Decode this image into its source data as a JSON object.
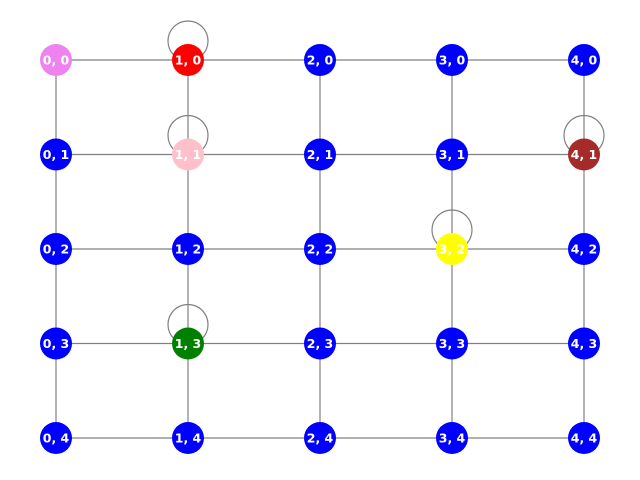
{
  "colors": {
    "edge": "#808080",
    "default_node": "#0000ff",
    "label": "#ffffff"
  },
  "graph": {
    "rows": 5,
    "cols": 5,
    "nodes": [
      {
        "id": "0,0",
        "label": "0, 0",
        "col": 0,
        "row": 0,
        "color": "#ee82ee"
      },
      {
        "id": "1,0",
        "label": "1, 0",
        "col": 1,
        "row": 0,
        "color": "#ff0000"
      },
      {
        "id": "2,0",
        "label": "2, 0",
        "col": 2,
        "row": 0,
        "color": "#0000ff"
      },
      {
        "id": "3,0",
        "label": "3, 0",
        "col": 3,
        "row": 0,
        "color": "#0000ff"
      },
      {
        "id": "4,0",
        "label": "4, 0",
        "col": 4,
        "row": 0,
        "color": "#0000ff"
      },
      {
        "id": "0,1",
        "label": "0, 1",
        "col": 0,
        "row": 1,
        "color": "#0000ff"
      },
      {
        "id": "1,1",
        "label": "1, 1",
        "col": 1,
        "row": 1,
        "color": "#ffc0cb"
      },
      {
        "id": "2,1",
        "label": "2, 1",
        "col": 2,
        "row": 1,
        "color": "#0000ff"
      },
      {
        "id": "3,1",
        "label": "3, 1",
        "col": 3,
        "row": 1,
        "color": "#0000ff"
      },
      {
        "id": "4,1",
        "label": "4, 1",
        "col": 4,
        "row": 1,
        "color": "#a52a2a"
      },
      {
        "id": "0,2",
        "label": "0, 2",
        "col": 0,
        "row": 2,
        "color": "#0000ff"
      },
      {
        "id": "1,2",
        "label": "1, 2",
        "col": 1,
        "row": 2,
        "color": "#0000ff"
      },
      {
        "id": "2,2",
        "label": "2, 2",
        "col": 2,
        "row": 2,
        "color": "#0000ff"
      },
      {
        "id": "3,2",
        "label": "3, 2",
        "col": 3,
        "row": 2,
        "color": "#ffff00"
      },
      {
        "id": "4,2",
        "label": "4, 2",
        "col": 4,
        "row": 2,
        "color": "#0000ff"
      },
      {
        "id": "0,3",
        "label": "0, 3",
        "col": 0,
        "row": 3,
        "color": "#0000ff"
      },
      {
        "id": "1,3",
        "label": "1, 3",
        "col": 1,
        "row": 3,
        "color": "#008000"
      },
      {
        "id": "2,3",
        "label": "2, 3",
        "col": 2,
        "row": 3,
        "color": "#0000ff"
      },
      {
        "id": "3,3",
        "label": "3, 3",
        "col": 3,
        "row": 3,
        "color": "#0000ff"
      },
      {
        "id": "4,3",
        "label": "4, 3",
        "col": 4,
        "row": 3,
        "color": "#0000ff"
      },
      {
        "id": "0,4",
        "label": "0, 4",
        "col": 0,
        "row": 4,
        "color": "#0000ff"
      },
      {
        "id": "1,4",
        "label": "1, 4",
        "col": 1,
        "row": 4,
        "color": "#0000ff"
      },
      {
        "id": "2,4",
        "label": "2, 4",
        "col": 2,
        "row": 4,
        "color": "#0000ff"
      },
      {
        "id": "3,4",
        "label": "3, 4",
        "col": 3,
        "row": 4,
        "color": "#0000ff"
      },
      {
        "id": "4,4",
        "label": "4, 4",
        "col": 4,
        "row": 4,
        "color": "#0000ff"
      }
    ],
    "edges": [
      [
        "0,0",
        "1,0"
      ],
      [
        "1,0",
        "2,0"
      ],
      [
        "2,0",
        "3,0"
      ],
      [
        "3,0",
        "4,0"
      ],
      [
        "0,1",
        "1,1"
      ],
      [
        "1,1",
        "2,1"
      ],
      [
        "2,1",
        "3,1"
      ],
      [
        "3,1",
        "4,1"
      ],
      [
        "0,2",
        "1,2"
      ],
      [
        "1,2",
        "2,2"
      ],
      [
        "2,2",
        "3,2"
      ],
      [
        "3,2",
        "4,2"
      ],
      [
        "0,3",
        "1,3"
      ],
      [
        "1,3",
        "2,3"
      ],
      [
        "2,3",
        "3,3"
      ],
      [
        "3,3",
        "4,3"
      ],
      [
        "0,4",
        "1,4"
      ],
      [
        "1,4",
        "2,4"
      ],
      [
        "2,4",
        "3,4"
      ],
      [
        "3,4",
        "4,4"
      ],
      [
        "0,0",
        "0,1"
      ],
      [
        "0,1",
        "0,2"
      ],
      [
        "0,2",
        "0,3"
      ],
      [
        "0,3",
        "0,4"
      ],
      [
        "1,0",
        "1,1"
      ],
      [
        "1,1",
        "1,2"
      ],
      [
        "1,2",
        "1,3"
      ],
      [
        "1,3",
        "1,4"
      ],
      [
        "2,0",
        "2,1"
      ],
      [
        "2,1",
        "2,2"
      ],
      [
        "2,2",
        "2,3"
      ],
      [
        "2,3",
        "2,4"
      ],
      [
        "3,0",
        "3,1"
      ],
      [
        "3,1",
        "3,2"
      ],
      [
        "3,2",
        "3,3"
      ],
      [
        "3,3",
        "3,4"
      ],
      [
        "4,0",
        "4,1"
      ],
      [
        "4,1",
        "4,2"
      ],
      [
        "4,2",
        "4,3"
      ],
      [
        "4,3",
        "4,4"
      ]
    ],
    "self_loops": [
      "1,0",
      "1,1",
      "4,1",
      "3,2",
      "1,3"
    ]
  }
}
